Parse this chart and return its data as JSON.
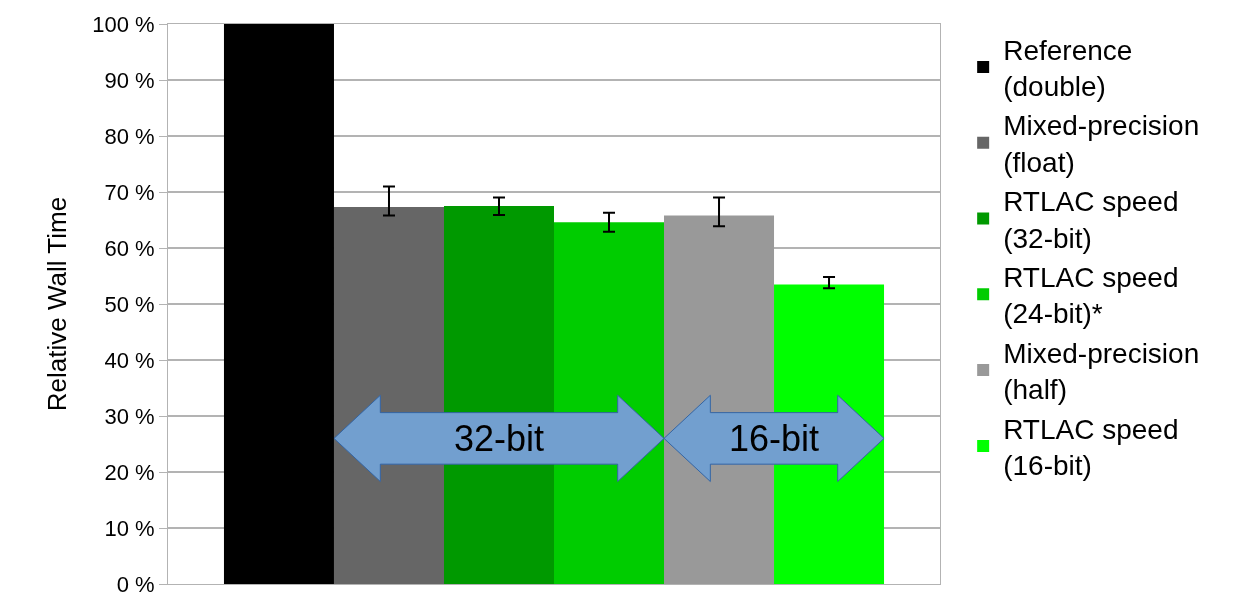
{
  "chart_data": {
    "type": "bar",
    "ylabel": "Relative Wall Time",
    "categories": [
      null
    ],
    "series": [
      {
        "name": "Reference\n(double)",
        "color": "#000000",
        "values": [
          100
        ]
      },
      {
        "name": "Mixed-precision\n(float)",
        "color": "#666666",
        "values": [
          67.3
        ],
        "errors": [
          [
            65.8,
            71.0
          ]
        ]
      },
      {
        "name": "RTLAC speed\n(32-bit)",
        "color": "#009900",
        "values": [
          67.5
        ],
        "errors": [
          [
            65.9,
            69.0
          ]
        ]
      },
      {
        "name": "RTLAC speed\n(24-bit)*",
        "color": "#00cc00",
        "values": [
          64.6
        ],
        "errors": [
          [
            62.9,
            66.3
          ]
        ]
      },
      {
        "name": "Mixed-precision\n(half)",
        "color": "#999999",
        "values": [
          65.8
        ],
        "errors": [
          [
            63.9,
            69.0
          ]
        ]
      },
      {
        "name": "RTLAC speed\n(16-bit)",
        "color": "#00ff00",
        "values": [
          53.5
        ],
        "errors": [
          [
            52.8,
            54.8
          ]
        ]
      }
    ],
    "ylim": [
      0,
      100
    ],
    "yticks": [
      {
        "value": 0,
        "label": "0 %"
      },
      {
        "value": 10,
        "label": "10 %"
      },
      {
        "value": 20,
        "label": "20 %"
      },
      {
        "value": 30,
        "label": "30 %"
      },
      {
        "value": 40,
        "label": "40 %"
      },
      {
        "value": 50,
        "label": "50 %"
      },
      {
        "value": 60,
        "label": "60 %"
      },
      {
        "value": 70,
        "label": "70 %"
      },
      {
        "value": 80,
        "label": "80 %"
      },
      {
        "value": 90,
        "label": "90 %"
      },
      {
        "value": 100,
        "label": "100 %"
      }
    ],
    "grid": "y",
    "legend": "top right",
    "tick_labels": "y",
    "annotations": [
      "32-bit",
      "16-bit"
    ]
  }
}
